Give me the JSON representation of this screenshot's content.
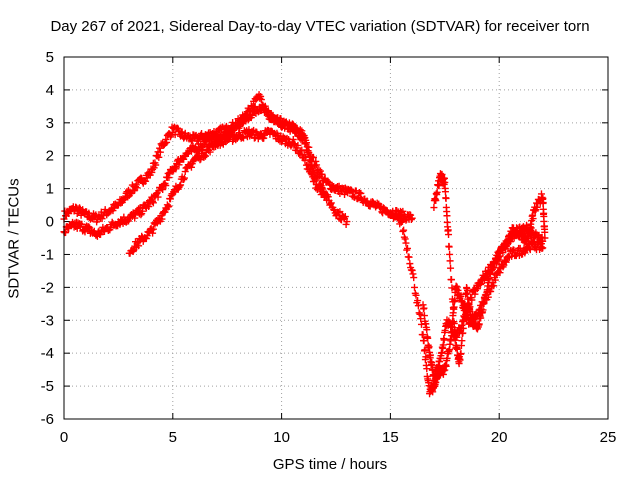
{
  "chart_data": {
    "type": "scatter",
    "title": "Day 267 of 2021, Sidereal Day-to-day VTEC variation (SDTVAR) for receiver torn",
    "xlabel": "GPS time / hours",
    "ylabel": "SDTVAR / TECUs",
    "xlim": [
      0,
      25
    ],
    "ylim": [
      -6,
      5
    ],
    "xticks": [
      "0",
      "5",
      "10",
      "15",
      "20",
      "25"
    ],
    "yticks": [
      "-6",
      "-5",
      "-4",
      "-3",
      "-2",
      "-1",
      "0",
      "1",
      "2",
      "3",
      "4",
      "5"
    ],
    "grid": true,
    "marker": "+",
    "series": [
      {
        "name": "track-1",
        "color": "#ff0000",
        "x": [
          0.0,
          0.5,
          1.0,
          1.5,
          2.0,
          2.5,
          3.0,
          3.5,
          4.0,
          4.5,
          5.0,
          5.5,
          6.0,
          6.5,
          7.0,
          7.5,
          8.0,
          8.5,
          9.0,
          9.5,
          10.0,
          10.5,
          11.0,
          11.5,
          12.0,
          12.5,
          13.0,
          13.5,
          14.0,
          14.5,
          15.0,
          15.5,
          16.0
        ],
        "y": [
          0.2,
          0.4,
          0.2,
          0.1,
          0.3,
          0.5,
          0.9,
          1.2,
          1.5,
          2.3,
          2.8,
          2.6,
          2.5,
          2.6,
          2.7,
          2.8,
          3.0,
          3.2,
          3.5,
          3.1,
          3.0,
          2.8,
          2.5,
          1.8,
          1.2,
          1.0,
          0.9,
          0.8,
          0.6,
          0.4,
          0.3,
          0.2,
          0.1
        ]
      },
      {
        "name": "track-2",
        "color": "#ff0000",
        "x": [
          0.0,
          0.5,
          1.0,
          1.5,
          2.0,
          2.5,
          3.0,
          3.5,
          4.0,
          4.5,
          5.0,
          5.5,
          6.0,
          6.5,
          7.0,
          7.5,
          8.0,
          8.5,
          9.0,
          9.5,
          10.0,
          10.5,
          11.0,
          11.5,
          12.0,
          12.5,
          13.0
        ],
        "y": [
          -0.3,
          -0.1,
          -0.2,
          -0.4,
          -0.2,
          0.0,
          0.1,
          0.3,
          0.6,
          1.0,
          1.6,
          2.0,
          2.2,
          2.4,
          2.5,
          2.7,
          2.9,
          3.4,
          3.8,
          3.2,
          2.9,
          2.9,
          2.6,
          1.5,
          0.8,
          0.3,
          0.0
        ]
      },
      {
        "name": "track-3",
        "color": "#ff0000",
        "x": [
          3.0,
          3.5,
          4.0,
          4.5,
          5.0,
          5.5,
          6.0,
          6.5,
          7.0,
          7.5,
          8.0,
          8.5,
          9.0,
          9.5,
          10.0,
          10.5,
          11.0,
          11.5,
          12.0
        ],
        "y": [
          -0.9,
          -0.6,
          -0.3,
          0.2,
          0.8,
          1.4,
          1.9,
          2.1,
          2.4,
          2.5,
          2.6,
          2.7,
          2.6,
          2.7,
          2.5,
          2.4,
          2.0,
          1.2,
          0.8
        ]
      },
      {
        "name": "track-4",
        "color": "#ff0000",
        "x": [
          15.0,
          15.5,
          16.0,
          16.5,
          16.8,
          17.0,
          17.2,
          17.5,
          17.8,
          18.0,
          18.3,
          18.6,
          19.0,
          19.5,
          20.0,
          20.5,
          21.0,
          21.5,
          22.0
        ],
        "y": [
          0.2,
          0.0,
          -1.5,
          -3.5,
          -5.2,
          -5.0,
          -4.6,
          -4.5,
          -3.5,
          -2.0,
          -2.5,
          -3.0,
          -2.8,
          -2.2,
          -1.5,
          -1.0,
          -0.9,
          -0.7,
          -0.8
        ]
      },
      {
        "name": "track-5",
        "color": "#ff0000",
        "x": [
          17.0,
          17.3,
          17.5,
          17.7,
          18.0,
          18.2,
          18.5,
          18.7,
          19.0,
          19.3,
          19.6,
          20.0,
          20.3,
          20.6,
          21.0,
          21.3,
          21.6,
          22.0,
          22.1
        ],
        "y": [
          0.5,
          1.4,
          1.2,
          -0.8,
          -3.8,
          -4.3,
          -2.0,
          -3.0,
          -3.2,
          -2.5,
          -1.5,
          -1.0,
          -0.7,
          -0.3,
          -0.4,
          -0.6,
          0.3,
          0.8,
          -0.5
        ]
      },
      {
        "name": "track-6",
        "color": "#ff0000",
        "x": [
          16.5,
          16.8,
          17.0,
          17.3,
          17.6,
          18.0,
          18.4,
          18.8,
          19.2,
          19.6,
          20.0,
          20.4,
          20.8,
          21.2,
          21.6,
          22.0
        ],
        "y": [
          -2.5,
          -4.0,
          -4.8,
          -4.2,
          -3.0,
          -3.5,
          -3.0,
          -2.2,
          -1.8,
          -1.4,
          -1.0,
          -0.6,
          -0.3,
          -0.2,
          -0.4,
          -0.6
        ]
      }
    ]
  }
}
